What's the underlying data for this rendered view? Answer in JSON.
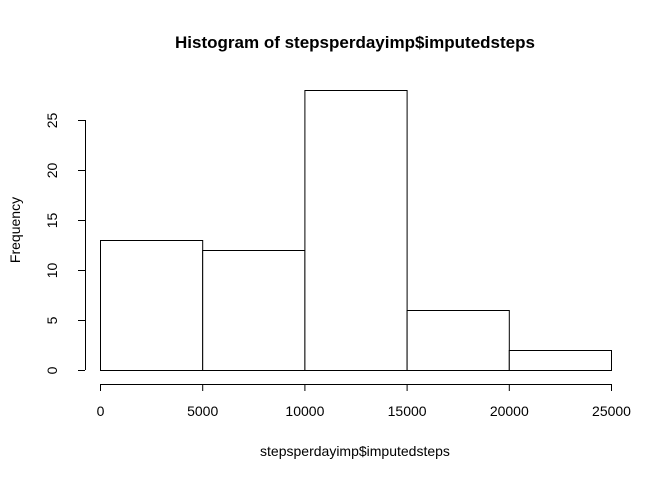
{
  "chart_data": {
    "type": "bar",
    "title": "Histogram of stepsperdayimp$imputedsteps",
    "xlabel": "stepsperdayimp$imputedsteps",
    "ylabel": "Frequency",
    "bins": [
      {
        "start": 0,
        "end": 5000,
        "count": 13
      },
      {
        "start": 5000,
        "end": 10000,
        "count": 12
      },
      {
        "start": 10000,
        "end": 15000,
        "count": 28
      },
      {
        "start": 15000,
        "end": 20000,
        "count": 6
      },
      {
        "start": 20000,
        "end": 25000,
        "count": 2
      }
    ],
    "xlim": [
      0,
      25000
    ],
    "ylim": [
      0,
      28
    ],
    "x_ticks": [
      "0",
      "5000",
      "10000",
      "15000",
      "20000",
      "25000"
    ],
    "y_ticks": [
      "0",
      "5",
      "10",
      "15",
      "20",
      "25"
    ],
    "grid": false,
    "legend": "none",
    "bar_fill": "#ffffff",
    "bar_stroke": "#000000"
  }
}
